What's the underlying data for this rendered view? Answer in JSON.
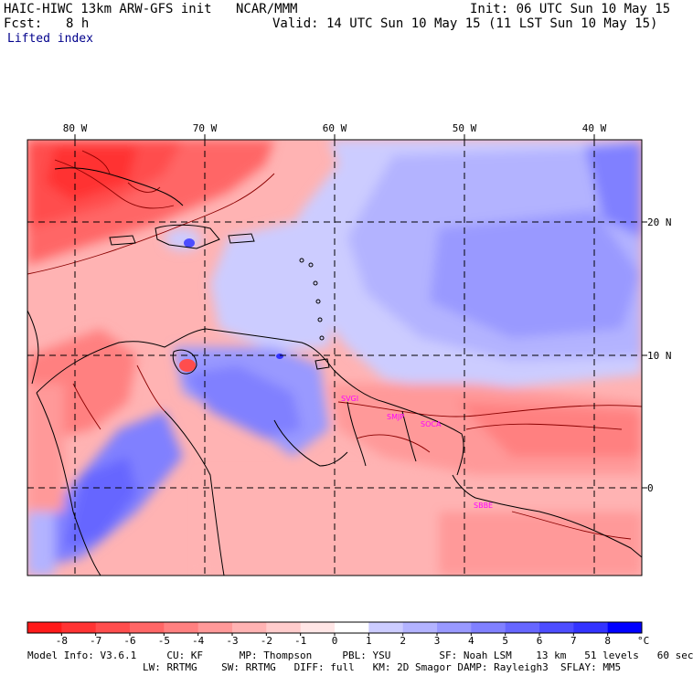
{
  "header": {
    "title": "HAIC-HIWC 13km ARW-GFS init",
    "org": "NCAR/MMM",
    "init": "Init: 06 UTC Sun 10 May 15",
    "fcst_label": "Fcst:",
    "fcst_value": "8 h",
    "valid": "Valid: 14 UTC Sun 10 May 15 (11 LST Sun 10 May 15)",
    "field": "Lifted index"
  },
  "map": {
    "lon_labels": [
      "80 W",
      "70 W",
      "60 W",
      "50 W",
      "40 W"
    ],
    "lat_labels": [
      "20 N",
      "10 N",
      "0"
    ],
    "stations": [
      "SVGI",
      "SMJP",
      "SOCA",
      "SBBE"
    ],
    "colors": {
      "land_outline": "#000000",
      "contour": "#8b0000",
      "station": "#ff00ff"
    }
  },
  "colorbar": {
    "ticks": [
      "-8",
      "-7",
      "-6",
      "-5",
      "-4",
      "-3",
      "-2",
      "-1",
      "0",
      "1",
      "2",
      "3",
      "4",
      "5",
      "6",
      "7",
      "8"
    ],
    "unit": "°C",
    "colors": [
      "#ff1a1a",
      "#ff3333",
      "#ff4d4d",
      "#ff6666",
      "#ff8080",
      "#ff9999",
      "#ffb3b3",
      "#ffcccc",
      "#ffe6e6",
      "#ffffff",
      "#ccccff",
      "#b3b3ff",
      "#9999ff",
      "#8080ff",
      "#6666ff",
      "#4d4dff",
      "#3333ff",
      "#0000ff"
    ]
  },
  "footer": {
    "line1": "Model Info: V3.6.1     CU: KF      MP: Thompson     PBL: YSU        SF: Noah LSM    13 km   51 levels   60 sec",
    "line2": "LW: RRTMG    SW: RRTMG   DIFF: full   KM: 2D Smagor DAMP: Rayleigh3  SFLAY: MM5"
  }
}
